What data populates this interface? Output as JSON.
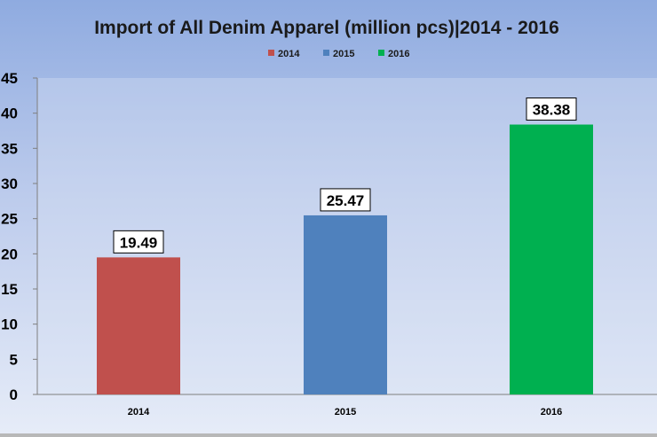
{
  "chart_data": {
    "type": "bar",
    "title": "Import of All Denim Apparel (million pcs)|2014 - 2016",
    "categories": [
      "2014",
      "2015",
      "2016"
    ],
    "values": [
      19.49,
      25.47,
      38.38
    ],
    "data_labels": [
      "19.49",
      "25.47",
      "38.38"
    ],
    "bar_colors": [
      "#c0504d",
      "#4f81bd",
      "#00b050"
    ],
    "legend": {
      "placement": "top",
      "entries": [
        "2014",
        "2015",
        "2016"
      ]
    },
    "yticks": [
      "0",
      "5",
      "10",
      "15",
      "20",
      "25",
      "30",
      "35",
      "40",
      "45"
    ],
    "ylim": [
      0,
      45
    ],
    "grid": false,
    "xlabel": "",
    "ylabel": ""
  }
}
